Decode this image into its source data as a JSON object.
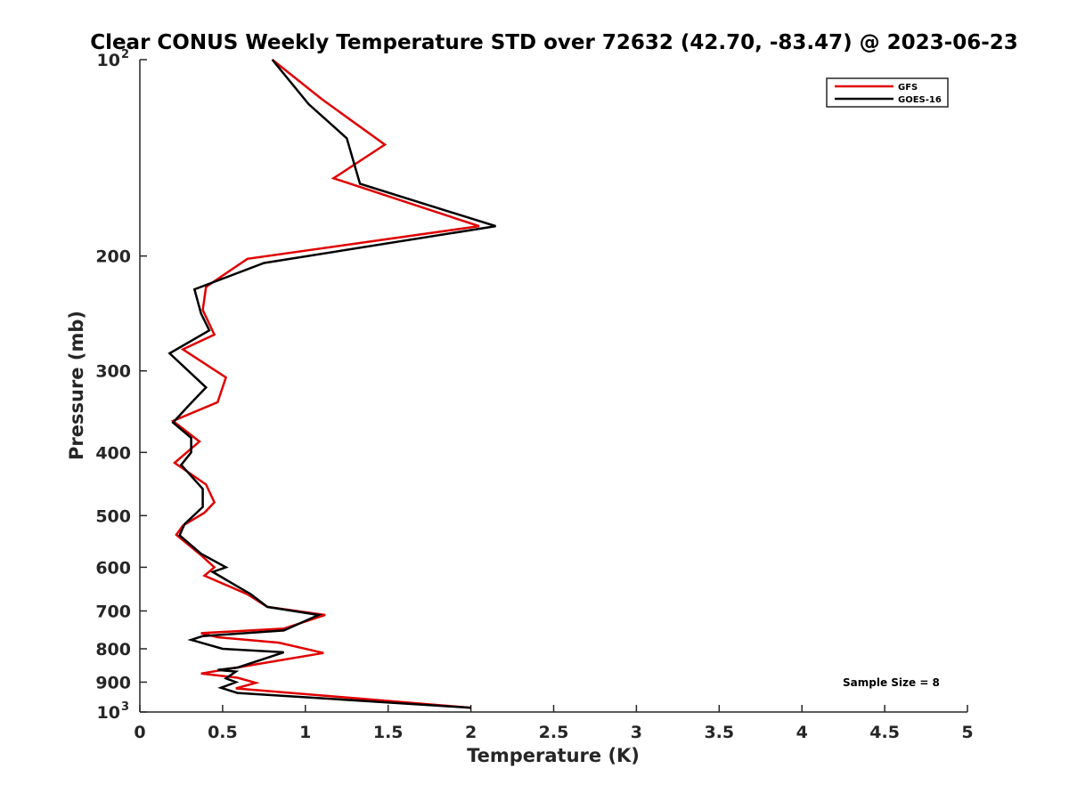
{
  "chart_data": {
    "type": "line",
    "title": "Clear CONUS Weekly Temperature STD over 72632 (42.70, -83.47) @ 2023-06-23",
    "xlabel": "Temperature (K)",
    "ylabel": "Pressure (mb)",
    "xlim": [
      0,
      5
    ],
    "ylim": [
      100,
      1000
    ],
    "y_scale": "log",
    "y_reversed": true,
    "grid": false,
    "legend_position": "top-right",
    "x_ticks": [
      "0",
      "0.5",
      "1",
      "1.5",
      "2",
      "2.5",
      "3",
      "3.5",
      "4",
      "4.5",
      "5"
    ],
    "y_ticks": [
      {
        "value": 100,
        "base": "10",
        "exp": "2"
      },
      {
        "value": 200,
        "label": "200"
      },
      {
        "value": 300,
        "label": "300"
      },
      {
        "value": 400,
        "label": "400"
      },
      {
        "value": 500,
        "label": "500"
      },
      {
        "value": 600,
        "label": "600"
      },
      {
        "value": 700,
        "label": "700"
      },
      {
        "value": 800,
        "label": "800"
      },
      {
        "value": 900,
        "label": "900"
      },
      {
        "value": 1000,
        "base": "10",
        "exp": "3"
      }
    ],
    "series": [
      {
        "name": "GFS",
        "color": "#e00000",
        "x": [
          0.8,
          1.1,
          1.48,
          1.17,
          2.05,
          0.65,
          0.4,
          0.38,
          0.45,
          0.26,
          0.52,
          0.47,
          0.2,
          0.36,
          0.21,
          0.4,
          0.45,
          0.39,
          0.26,
          0.22,
          0.37,
          0.45,
          0.39,
          0.65,
          0.77,
          1.12,
          0.87,
          0.37,
          0.47,
          0.84,
          1.11,
          0.37,
          0.59,
          0.7,
          0.58,
          2.0
        ],
        "y": [
          100,
          115,
          135,
          152,
          180,
          202,
          223,
          242,
          264,
          278,
          307,
          335,
          358,
          385,
          415,
          448,
          477,
          495,
          518,
          535,
          575,
          600,
          618,
          660,
          690,
          710,
          745,
          757,
          768,
          783,
          812,
          873,
          886,
          902,
          920,
          985
        ]
      },
      {
        "name": "GOES-16",
        "color": "#000000",
        "x": [
          0.8,
          1.02,
          1.25,
          1.33,
          2.15,
          0.75,
          0.33,
          0.37,
          0.42,
          0.18,
          0.4,
          0.3,
          0.2,
          0.31,
          0.31,
          0.25,
          0.38,
          0.38,
          0.27,
          0.24,
          0.37,
          0.52,
          0.44,
          0.67,
          0.77,
          1.08,
          0.87,
          0.38,
          0.31,
          0.5,
          0.87,
          0.59,
          0.47,
          0.58,
          0.52,
          0.58,
          0.49,
          0.59,
          2.0
        ],
        "y": [
          100,
          117,
          132,
          155,
          180,
          205,
          225,
          245,
          260,
          282,
          318,
          338,
          360,
          380,
          400,
          418,
          455,
          485,
          515,
          536,
          572,
          600,
          610,
          660,
          690,
          710,
          750,
          765,
          775,
          800,
          810,
          855,
          862,
          867,
          888,
          900,
          918,
          935,
          985
        ]
      }
    ],
    "annotations": [
      {
        "text": "Sample Size = 8",
        "position": "bottom-right"
      }
    ]
  }
}
